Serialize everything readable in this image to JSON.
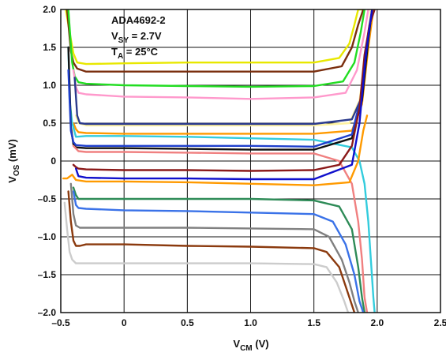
{
  "chart_data": {
    "type": "line",
    "title": "",
    "annotation": {
      "part": "ADA4692-2",
      "supply_main": "V",
      "supply_sub": "SY",
      "supply_value": " = 2.7V",
      "temp_main": "T",
      "temp_sub": "A",
      "temp_value": " = 25°C"
    },
    "xlabel": {
      "main": "V",
      "sub": "CM",
      "unit": " (V)"
    },
    "ylabel": {
      "main": "V",
      "sub": "OS",
      "unit": " (mV)"
    },
    "xlim": [
      -0.5,
      2.5
    ],
    "ylim": [
      -2.0,
      2.0
    ],
    "x_ticks": [
      {
        "value": -0.5,
        "label": "–0.5"
      },
      {
        "value": 0,
        "label": "0"
      },
      {
        "value": 0.5,
        "label": "0.5"
      },
      {
        "value": 1.0,
        "label": "1.0"
      },
      {
        "value": 1.5,
        "label": "1.5"
      },
      {
        "value": 2.0,
        "label": "2.0"
      },
      {
        "value": 2.5,
        "label": "2.5"
      }
    ],
    "y_ticks": [
      {
        "value": 2.0,
        "label": "2.0"
      },
      {
        "value": 1.5,
        "label": "1.5"
      },
      {
        "value": 1.0,
        "label": "1.0"
      },
      {
        "value": 0.5,
        "label": "0.5"
      },
      {
        "value": 0,
        "label": "0"
      },
      {
        "value": -0.5,
        "label": "–0.5"
      },
      {
        "value": -1.0,
        "label": "–1.0"
      },
      {
        "value": -1.5,
        "label": "–1.5"
      },
      {
        "value": -2.0,
        "label": "–2.0"
      }
    ],
    "grid": true,
    "series": [
      {
        "color": "#e8e800",
        "x": [
          -0.46,
          -0.43,
          -0.4,
          -0.37,
          -0.3,
          0,
          0.5,
          1,
          1.5,
          1.7,
          1.78,
          1.82,
          1.85,
          1.88
        ],
        "y": [
          2.0,
          1.7,
          1.42,
          1.3,
          1.28,
          1.29,
          1.3,
          1.3,
          1.3,
          1.36,
          1.55,
          1.8,
          2.0,
          2.0
        ]
      },
      {
        "color": "#7a2e0e",
        "x": [
          -0.45,
          -0.42,
          -0.4,
          -0.37,
          -0.3,
          0,
          0.5,
          1,
          1.5,
          1.72,
          1.8,
          1.85,
          1.89
        ],
        "y": [
          2.0,
          1.45,
          1.3,
          1.22,
          1.18,
          1.18,
          1.18,
          1.18,
          1.18,
          1.25,
          1.5,
          1.8,
          2.0
        ]
      },
      {
        "color": "#22dd22",
        "x": [
          -0.44,
          -0.41,
          -0.39,
          -0.36,
          -0.3,
          0,
          0.5,
          1,
          1.5,
          1.73,
          1.82,
          1.87,
          1.9
        ],
        "y": [
          2.0,
          1.3,
          1.12,
          1.04,
          1.02,
          1.0,
          0.99,
          0.98,
          0.99,
          1.05,
          1.3,
          1.7,
          2.0
        ]
      },
      {
        "color": "#ff99cc",
        "x": [
          -0.4,
          -0.38,
          -0.36,
          -0.3,
          0,
          0.5,
          1,
          1.5,
          1.75,
          1.84,
          1.9,
          1.93
        ],
        "y": [
          1.2,
          0.98,
          0.9,
          0.88,
          0.85,
          0.84,
          0.82,
          0.84,
          0.9,
          1.2,
          1.7,
          2.0
        ]
      },
      {
        "color": "#fff3a0",
        "x": [
          -0.38,
          -0.36,
          -0.3,
          0,
          0.5,
          1,
          1.5,
          1.78,
          1.86,
          1.92,
          1.95
        ],
        "y": [
          0.6,
          0.5,
          0.47,
          0.47,
          0.47,
          0.47,
          0.47,
          0.5,
          0.8,
          1.5,
          2.0
        ]
      },
      {
        "color": "#2b3a8c",
        "x": [
          -0.39,
          -0.37,
          -0.35,
          -0.3,
          0,
          0.5,
          1,
          1.5,
          1.8,
          1.88,
          1.93,
          1.96
        ],
        "y": [
          1.1,
          0.6,
          0.5,
          0.49,
          0.49,
          0.49,
          0.49,
          0.49,
          0.55,
          0.85,
          1.6,
          2.0
        ]
      },
      {
        "color": "#ff9a00",
        "x": [
          -0.4,
          -0.38,
          -0.36,
          -0.3,
          0,
          0.5,
          1,
          1.5,
          1.8,
          1.88,
          1.93,
          1.97
        ],
        "y": [
          0.5,
          0.42,
          0.38,
          0.37,
          0.36,
          0.36,
          0.36,
          0.36,
          0.4,
          0.75,
          1.5,
          2.0
        ]
      },
      {
        "color": "#33ccdd",
        "x": [
          -0.44,
          -0.43,
          -0.41,
          -0.38,
          -0.3,
          0,
          0.5,
          1,
          1.5,
          1.8,
          1.86,
          1.9,
          1.93,
          1.95,
          1.97,
          1.98
        ],
        "y": [
          1.5,
          0.8,
          0.5,
          0.32,
          0.33,
          0.33,
          0.32,
          0.3,
          0.28,
          0.18,
          0.0,
          -0.3,
          -0.8,
          -1.3,
          -1.8,
          -2.0
        ]
      },
      {
        "color": "#111111",
        "x": [
          -0.44,
          -0.42,
          -0.4,
          -0.38,
          -0.3,
          0,
          0.5,
          1,
          1.5,
          1.8,
          1.88,
          1.93,
          1.96
        ],
        "y": [
          1.5,
          0.45,
          0.22,
          0.18,
          0.17,
          0.17,
          0.16,
          0.15,
          0.15,
          0.3,
          0.8,
          1.6,
          2.0
        ]
      },
      {
        "color": "#1f3fcc",
        "x": [
          -0.44,
          -0.42,
          -0.4,
          -0.38,
          -0.3,
          0,
          0.5,
          1,
          1.5,
          1.8,
          1.88,
          1.93,
          1.96
        ],
        "y": [
          1.2,
          0.4,
          0.25,
          0.21,
          0.2,
          0.2,
          0.2,
          0.2,
          0.19,
          0.35,
          0.9,
          1.7,
          2.0
        ]
      },
      {
        "color": "#f08080",
        "x": [
          -0.4,
          -0.36,
          -0.3,
          0,
          0.5,
          1,
          1.5,
          1.7,
          1.8,
          1.85,
          1.88,
          1.9,
          1.92
        ],
        "y": [
          0.2,
          0.13,
          0.12,
          0.12,
          0.11,
          0.1,
          0.1,
          0.0,
          -0.3,
          -0.8,
          -1.3,
          -1.8,
          -2.0
        ]
      },
      {
        "color": "#8b1a1a",
        "x": [
          -0.4,
          -0.38,
          -0.36,
          -0.3,
          0,
          0.5,
          1,
          1.5,
          1.7,
          1.8,
          1.86,
          1.9,
          1.94,
          1.98
        ],
        "y": [
          -0.05,
          -0.08,
          -0.1,
          -0.11,
          -0.12,
          -0.12,
          -0.13,
          -0.12,
          -0.05,
          0.2,
          0.7,
          1.4,
          1.8,
          2.0
        ]
      },
      {
        "color": "#1010cc",
        "x": [
          -0.38,
          -0.36,
          -0.3,
          0,
          0.5,
          1,
          1.5,
          1.8,
          1.86,
          1.91,
          1.96
        ],
        "y": [
          -0.1,
          -0.2,
          -0.22,
          -0.23,
          -0.23,
          -0.24,
          -0.24,
          -0.05,
          0.5,
          1.4,
          2.0
        ]
      },
      {
        "color": "#ff9a00",
        "x": [
          -0.48,
          -0.45,
          -0.41,
          -0.38,
          -0.3,
          0,
          0.5,
          1,
          1.5,
          1.78,
          1.85,
          1.89,
          1.92
        ],
        "y": [
          -0.23,
          -0.23,
          -0.18,
          -0.25,
          -0.27,
          -0.27,
          -0.28,
          -0.3,
          -0.32,
          -0.28,
          0.0,
          0.4,
          0.6
        ]
      },
      {
        "color": "#2e8b57",
        "x": [
          -0.4,
          -0.38,
          -0.36,
          -0.3,
          0,
          0.5,
          1,
          1.5,
          1.7,
          1.8,
          1.85,
          1.88,
          1.9
        ],
        "y": [
          -0.35,
          -0.45,
          -0.5,
          -0.5,
          -0.5,
          -0.5,
          -0.5,
          -0.52,
          -0.6,
          -0.9,
          -1.4,
          -1.8,
          -2.0
        ]
      },
      {
        "color": "#3a72e8",
        "x": [
          -0.4,
          -0.38,
          -0.36,
          -0.3,
          0,
          0.5,
          1,
          1.5,
          1.65,
          1.75,
          1.82,
          1.86,
          1.89
        ],
        "y": [
          -0.4,
          -0.58,
          -0.62,
          -0.63,
          -0.65,
          -0.66,
          -0.68,
          -0.7,
          -0.8,
          -1.1,
          -1.5,
          -1.85,
          -2.0
        ]
      },
      {
        "color": "#808080",
        "x": [
          -0.42,
          -0.4,
          -0.38,
          -0.35,
          -0.3,
          0,
          0.5,
          1,
          1.5,
          1.62,
          1.72,
          1.78,
          1.82,
          1.85
        ],
        "y": [
          -0.3,
          -0.7,
          -0.85,
          -0.88,
          -0.88,
          -0.88,
          -0.88,
          -0.89,
          -0.9,
          -1.0,
          -1.3,
          -1.6,
          -1.85,
          -2.0
        ]
      },
      {
        "color": "#8b3a0e",
        "x": [
          -0.44,
          -0.42,
          -0.4,
          -0.38,
          -0.35,
          -0.3,
          0,
          0.5,
          1,
          1.5,
          1.6,
          1.7,
          1.75,
          1.79,
          1.82
        ],
        "y": [
          -0.4,
          -0.8,
          -1.05,
          -1.12,
          -1.12,
          -1.1,
          -1.1,
          -1.12,
          -1.13,
          -1.15,
          -1.2,
          -1.4,
          -1.65,
          -1.85,
          -2.0
        ]
      },
      {
        "color": "#cccccc",
        "x": [
          -0.47,
          -0.45,
          -0.43,
          -0.41,
          -0.38,
          -0.3,
          0,
          0.5,
          1,
          1.5,
          1.6,
          1.68,
          1.74,
          1.77
        ],
        "y": [
          -0.55,
          -0.9,
          -1.2,
          -1.3,
          -1.35,
          -1.35,
          -1.35,
          -1.35,
          -1.35,
          -1.36,
          -1.4,
          -1.6,
          -1.85,
          -2.0
        ]
      }
    ]
  }
}
